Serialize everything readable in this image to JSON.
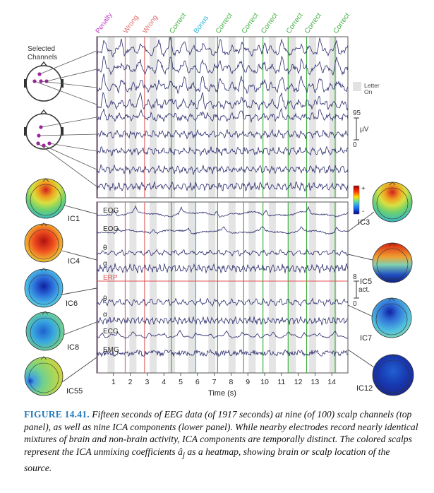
{
  "figure": {
    "event_labels": [
      {
        "label": "Penalty",
        "color": "#c03cc8"
      },
      {
        "label": "Wrong",
        "color": "#e07070"
      },
      {
        "label": "Wrong",
        "color": "#e07070"
      },
      {
        "label": "Correct",
        "color": "#3fae3f"
      },
      {
        "label": "Bonus",
        "color": "#2bb5d8"
      },
      {
        "label": "Correct",
        "color": "#3fae3f"
      },
      {
        "label": "Correct",
        "color": "#3fae3f"
      },
      {
        "label": "Correct",
        "color": "#3fae3f"
      },
      {
        "label": "Correct",
        "color": "#3fae3f"
      },
      {
        "label": "Correct",
        "color": "#3fae3f"
      },
      {
        "label": "Correct",
        "color": "#3fae3f"
      }
    ],
    "selected_channels_label": "Selected\nChannels",
    "legend_letter": "Letter\nOn",
    "scale_top": {
      "value": "95",
      "unit": "µV",
      "zero": "0"
    },
    "scale_bottom": {
      "value": "8",
      "unit": "act.",
      "zero": "0"
    },
    "colorbar": {
      "plus": "+",
      "minus": "-"
    },
    "component_labels": [
      "EOG",
      "EOG",
      "θ",
      "α",
      "ERP",
      "θ",
      "α",
      "ECG",
      "EMG"
    ],
    "left_ics": [
      "IC1",
      "IC4",
      "IC6",
      "IC8",
      "IC55"
    ],
    "right_ics": [
      "IC3",
      "IC5",
      "IC7",
      "IC12"
    ],
    "x_ticks": [
      "1",
      "2",
      "3",
      "4",
      "5",
      "6",
      "7",
      "8",
      "9",
      "10",
      "11",
      "12",
      "13",
      "14"
    ],
    "x_label": "Time (s)"
  },
  "caption": {
    "label": "FIGURE 14.41.",
    "text_before_math": " Fifteen seconds of EEG data (of 1917 seconds) at nine (of 100) scalp channels (top panel), as well as nine ICA components (lower panel). While nearby electrodes record nearly identical mixtures of brain and non-brain activity, ICA components are temporally distinct. The colored scalps represent the ICA unmixing coefficients ",
    "math": "â",
    "math_sub": "j",
    "text_after_math": " as a heatmap, showing brain or scalp location of the source."
  },
  "colors": {
    "trace": "#2c2c6e",
    "erp": "#e05050",
    "letter_on": "#e4e4e4"
  }
}
